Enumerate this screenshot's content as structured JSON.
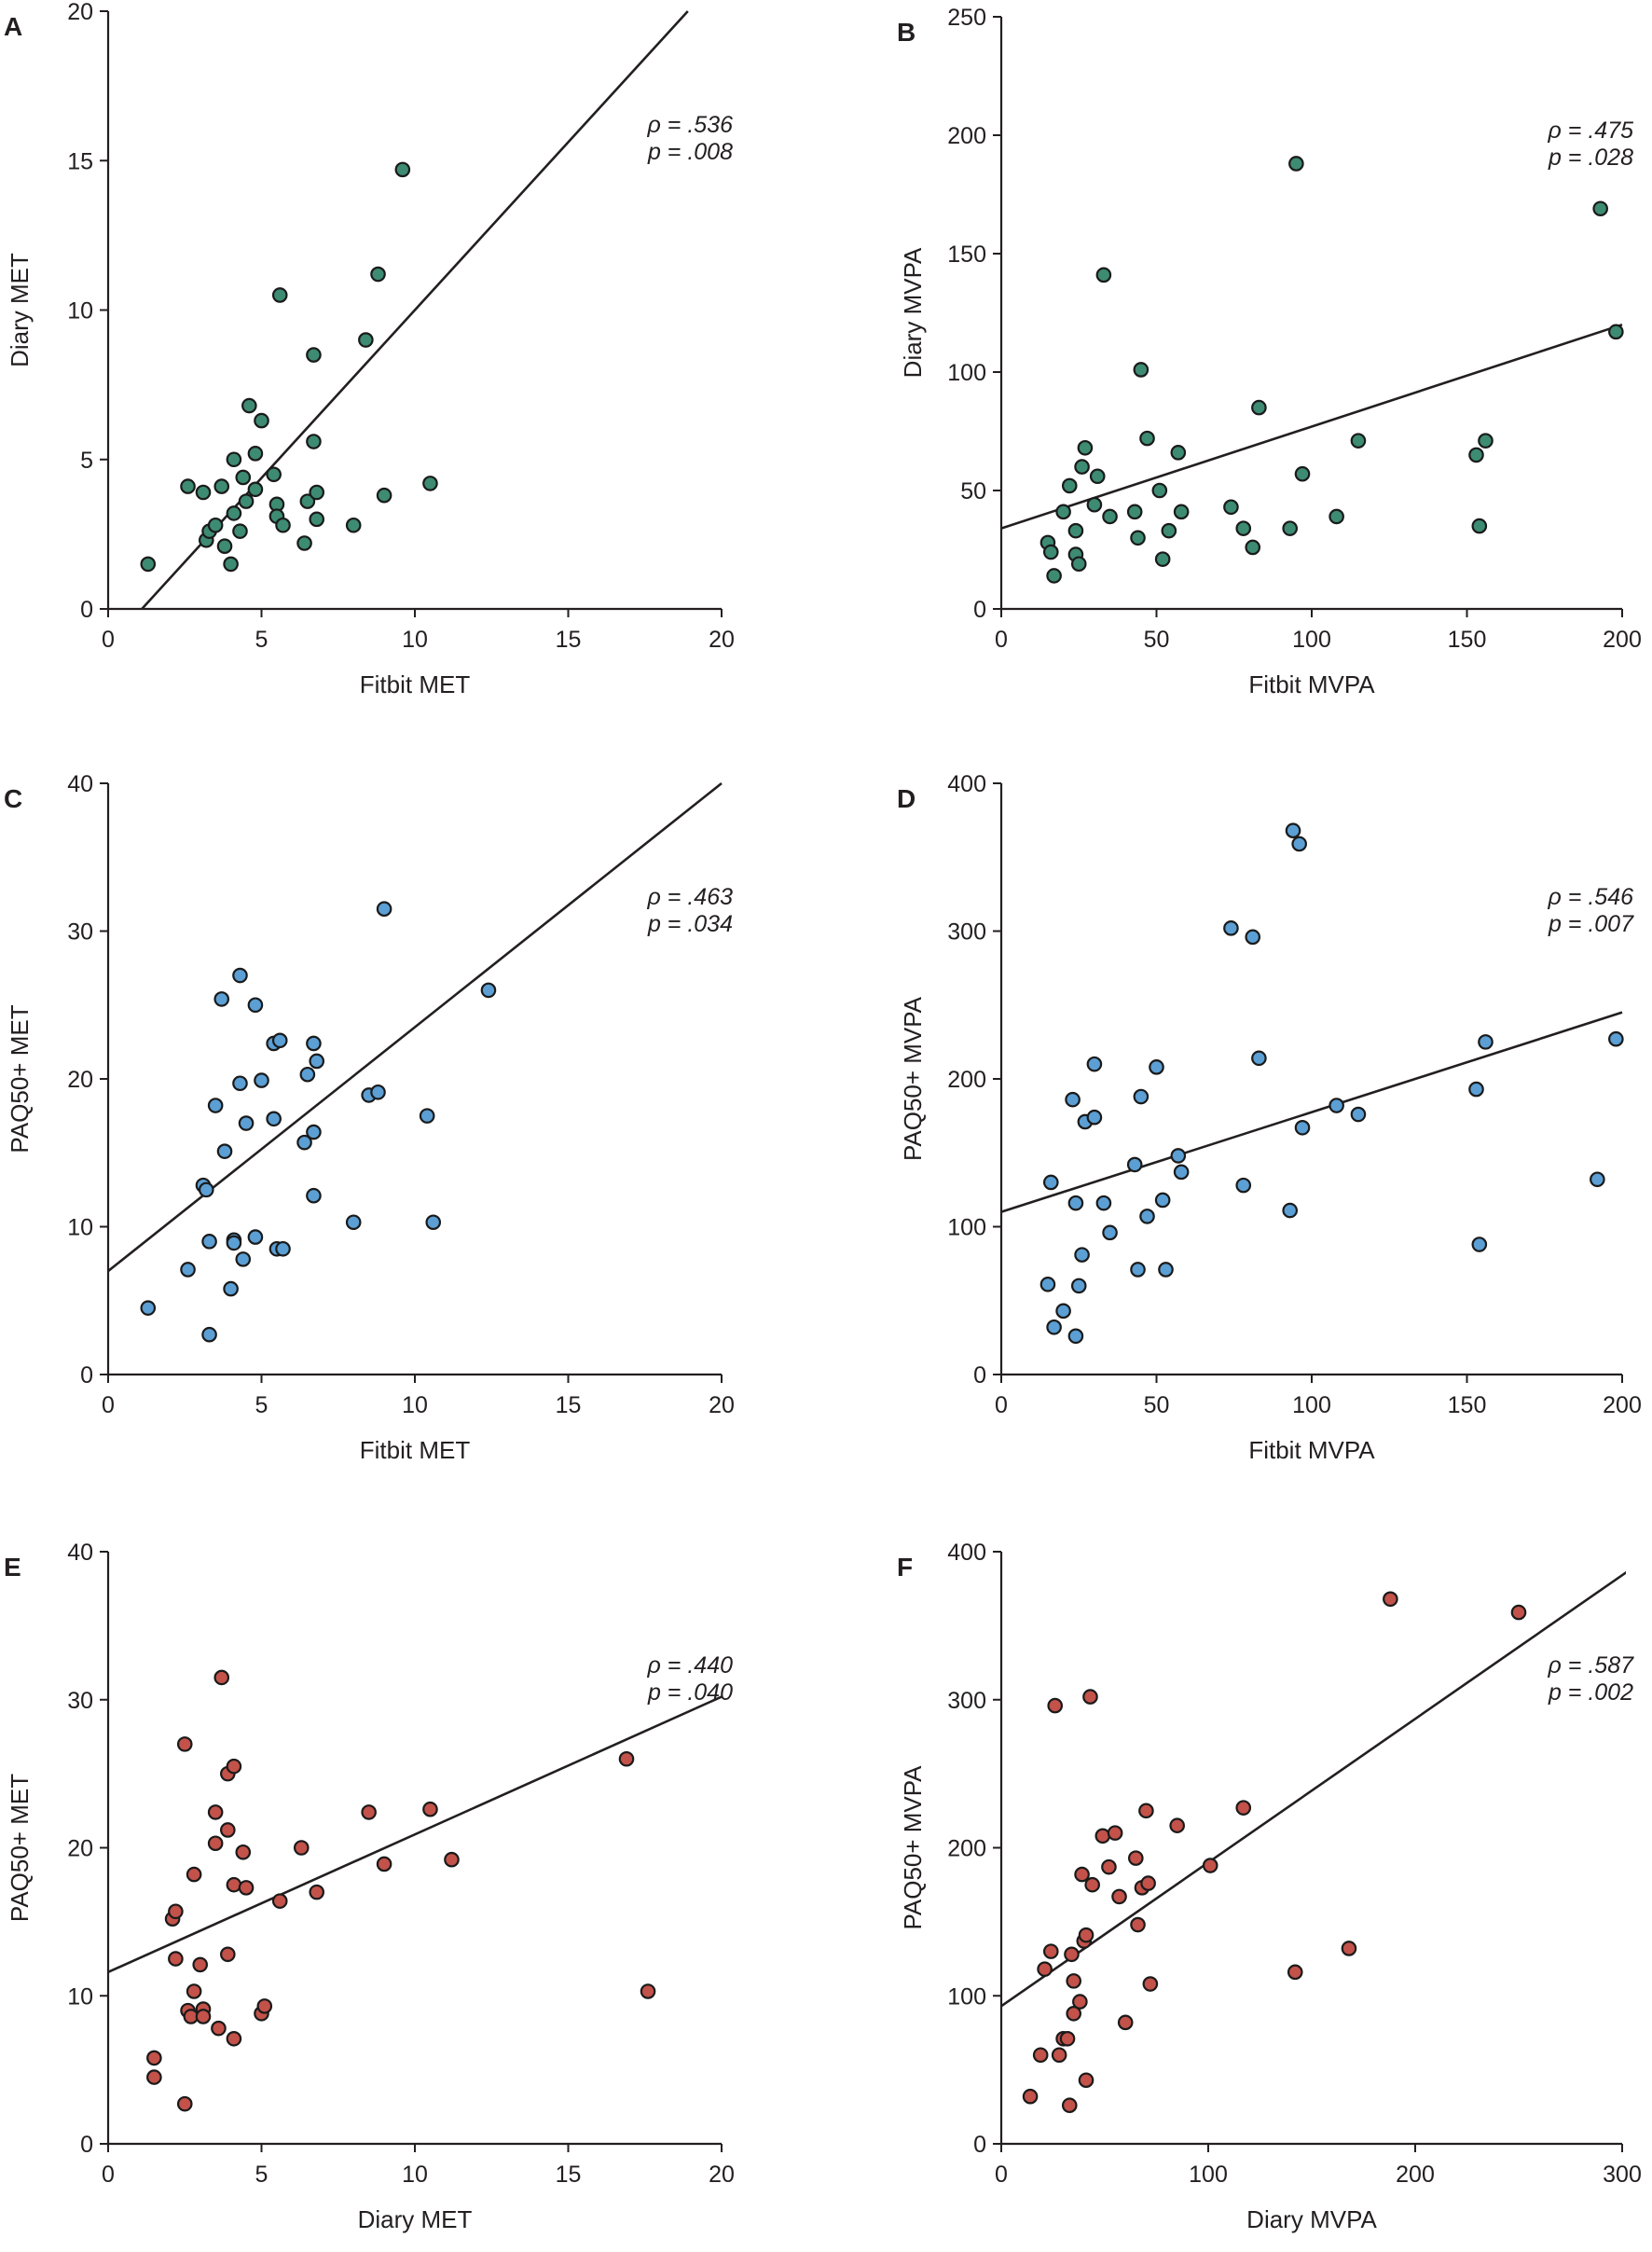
{
  "chart_data": [
    {
      "type": "scatter",
      "panel": "A",
      "xlabel": "Fitbit MET",
      "ylabel": "Diary MET",
      "xlim": [
        0,
        20
      ],
      "ylim": [
        0,
        20
      ],
      "xticks": [
        0,
        5,
        10,
        15,
        20
      ],
      "yticks": [
        0,
        5,
        10,
        15,
        20
      ],
      "stat_rho": "ρ = .536",
      "stat_p": "p = .008",
      "point_color": "#3d8b72",
      "regression": {
        "x": [
          1.1,
          18.9
        ],
        "y": [
          0,
          20
        ]
      },
      "points": [
        [
          1.3,
          1.5
        ],
        [
          2.6,
          4.1
        ],
        [
          3.1,
          3.9
        ],
        [
          3.2,
          2.3
        ],
        [
          3.3,
          2.6
        ],
        [
          3.5,
          2.8
        ],
        [
          3.7,
          4.1
        ],
        [
          3.8,
          2.1
        ],
        [
          4.0,
          1.5
        ],
        [
          4.1,
          3.2
        ],
        [
          4.1,
          5.0
        ],
        [
          4.3,
          2.6
        ],
        [
          4.4,
          4.4
        ],
        [
          4.5,
          3.6
        ],
        [
          4.6,
          6.8
        ],
        [
          4.8,
          5.2
        ],
        [
          4.8,
          4.0
        ],
        [
          5.0,
          6.3
        ],
        [
          5.4,
          4.5
        ],
        [
          5.5,
          3.5
        ],
        [
          5.5,
          3.1
        ],
        [
          5.6,
          10.5
        ],
        [
          5.7,
          2.8
        ],
        [
          6.4,
          2.2
        ],
        [
          6.5,
          3.6
        ],
        [
          6.7,
          8.5
        ],
        [
          6.7,
          5.6
        ],
        [
          6.8,
          3.0
        ],
        [
          6.8,
          3.9
        ],
        [
          8.0,
          2.8
        ],
        [
          8.4,
          9.0
        ],
        [
          8.8,
          11.2
        ],
        [
          9.0,
          3.8
        ],
        [
          9.6,
          14.7
        ],
        [
          10.5,
          4.2
        ]
      ]
    },
    {
      "type": "scatter",
      "panel": "B",
      "xlabel": "Fitbit MVPA",
      "ylabel": "Diary MVPA",
      "xlim": [
        0,
        200
      ],
      "ylim": [
        0,
        250
      ],
      "xticks": [
        0,
        50,
        100,
        150,
        200
      ],
      "yticks": [
        0,
        50,
        100,
        150,
        200,
        250
      ],
      "stat_rho": "ρ = .475",
      "stat_p": "p = .028",
      "point_color": "#3d8b72",
      "regression": {
        "x": [
          0,
          200
        ],
        "y": [
          34,
          120
        ]
      },
      "points": [
        [
          15,
          28
        ],
        [
          16,
          24
        ],
        [
          17,
          14
        ],
        [
          20,
          41
        ],
        [
          22,
          52
        ],
        [
          24,
          23
        ],
        [
          24,
          33
        ],
        [
          25,
          19
        ],
        [
          26,
          60
        ],
        [
          27,
          68
        ],
        [
          30,
          44
        ],
        [
          31,
          56
        ],
        [
          33,
          141
        ],
        [
          35,
          39
        ],
        [
          43,
          41
        ],
        [
          44,
          30
        ],
        [
          45,
          101
        ],
        [
          47,
          72
        ],
        [
          51,
          50
        ],
        [
          52,
          21
        ],
        [
          54,
          33
        ],
        [
          57,
          66
        ],
        [
          58,
          41
        ],
        [
          74,
          43
        ],
        [
          78,
          34
        ],
        [
          81,
          26
        ],
        [
          83,
          85
        ],
        [
          93,
          34
        ],
        [
          95,
          188
        ],
        [
          97,
          57
        ],
        [
          108,
          39
        ],
        [
          115,
          71
        ],
        [
          153,
          65
        ],
        [
          154,
          35
        ],
        [
          156,
          71
        ],
        [
          193,
          169
        ],
        [
          198,
          117
        ]
      ]
    },
    {
      "type": "scatter",
      "panel": "C",
      "xlabel": "Fitbit MET",
      "ylabel": "PAQ50+ MET",
      "xlim": [
        0,
        20
      ],
      "ylim": [
        0,
        40
      ],
      "xticks": [
        0,
        5,
        10,
        15,
        20
      ],
      "yticks": [
        0,
        10,
        20,
        30,
        40
      ],
      "stat_rho": "ρ = .463",
      "stat_p": "p = .034",
      "point_color": "#5b9fd4",
      "regression": {
        "x": [
          0,
          20
        ],
        "y": [
          7,
          40
        ]
      },
      "points": [
        [
          1.3,
          4.5
        ],
        [
          2.6,
          7.1
        ],
        [
          3.1,
          12.8
        ],
        [
          3.2,
          12.5
        ],
        [
          3.3,
          9.0
        ],
        [
          3.3,
          2.7
        ],
        [
          3.5,
          18.2
        ],
        [
          3.7,
          25.4
        ],
        [
          3.8,
          15.1
        ],
        [
          4.0,
          5.8
        ],
        [
          4.1,
          9.1
        ],
        [
          4.1,
          8.9
        ],
        [
          4.3,
          27.0
        ],
        [
          4.3,
          19.7
        ],
        [
          4.4,
          7.8
        ],
        [
          4.5,
          17.0
        ],
        [
          4.8,
          25.0
        ],
        [
          4.8,
          9.3
        ],
        [
          5.0,
          19.9
        ],
        [
          5.4,
          17.3
        ],
        [
          5.4,
          22.4
        ],
        [
          5.5,
          8.5
        ],
        [
          5.6,
          22.6
        ],
        [
          5.7,
          8.5
        ],
        [
          6.4,
          15.7
        ],
        [
          6.5,
          20.3
        ],
        [
          6.7,
          22.4
        ],
        [
          6.7,
          16.4
        ],
        [
          6.8,
          21.2
        ],
        [
          6.7,
          12.1
        ],
        [
          8.0,
          10.3
        ],
        [
          8.5,
          18.9
        ],
        [
          8.8,
          19.1
        ],
        [
          9.0,
          31.5
        ],
        [
          10.4,
          17.5
        ],
        [
          10.6,
          10.3
        ],
        [
          12.4,
          26.0
        ]
      ]
    },
    {
      "type": "scatter",
      "panel": "D",
      "xlabel": "Fitbit MVPA",
      "ylabel": "PAQ50+ MVPA",
      "xlim": [
        0,
        200
      ],
      "ylim": [
        0,
        400
      ],
      "xticks": [
        0,
        50,
        100,
        150,
        200
      ],
      "yticks": [
        0,
        100,
        200,
        300,
        400
      ],
      "stat_rho": "ρ = .546",
      "stat_p": "p = .007",
      "point_color": "#5b9fd4",
      "regression": {
        "x": [
          0,
          200
        ],
        "y": [
          110,
          245
        ]
      },
      "points": [
        [
          15,
          61
        ],
        [
          16,
          130
        ],
        [
          17,
          32
        ],
        [
          20,
          43
        ],
        [
          23,
          186
        ],
        [
          24,
          116
        ],
        [
          24,
          26
        ],
        [
          25,
          60
        ],
        [
          26,
          81
        ],
        [
          27,
          171
        ],
        [
          30,
          210
        ],
        [
          30,
          174
        ],
        [
          33,
          116
        ],
        [
          35,
          96
        ],
        [
          43,
          142
        ],
        [
          44,
          71
        ],
        [
          45,
          188
        ],
        [
          47,
          107
        ],
        [
          50,
          208
        ],
        [
          52,
          118
        ],
        [
          53,
          71
        ],
        [
          57,
          148
        ],
        [
          58,
          137
        ],
        [
          74,
          302
        ],
        [
          78,
          128
        ],
        [
          81,
          296
        ],
        [
          83,
          214
        ],
        [
          93,
          111
        ],
        [
          94,
          368
        ],
        [
          96,
          359
        ],
        [
          97,
          167
        ],
        [
          108,
          182
        ],
        [
          115,
          176
        ],
        [
          153,
          193
        ],
        [
          154,
          88
        ],
        [
          156,
          225
        ],
        [
          192,
          132
        ],
        [
          198,
          227
        ]
      ]
    },
    {
      "type": "scatter",
      "panel": "E",
      "xlabel": "Diary MET",
      "ylabel": "PAQ50+ MET",
      "xlim": [
        0,
        20
      ],
      "ylim": [
        0,
        40
      ],
      "xticks": [
        0,
        5,
        10,
        15,
        20
      ],
      "yticks": [
        0,
        10,
        20,
        30,
        40
      ],
      "stat_rho": "ρ = .440",
      "stat_p": "p = .040",
      "point_color": "#c2524a",
      "regression": {
        "x": [
          0,
          20
        ],
        "y": [
          11.6,
          30.2
        ]
      },
      "points": [
        [
          1.5,
          5.8
        ],
        [
          1.5,
          4.5
        ],
        [
          2.1,
          15.2
        ],
        [
          2.2,
          15.7
        ],
        [
          2.2,
          12.5
        ],
        [
          2.5,
          27.0
        ],
        [
          2.5,
          2.7
        ],
        [
          2.6,
          9.0
        ],
        [
          2.7,
          8.6
        ],
        [
          2.8,
          18.2
        ],
        [
          2.8,
          10.3
        ],
        [
          3.0,
          12.1
        ],
        [
          3.1,
          9.1
        ],
        [
          3.1,
          8.6
        ],
        [
          3.5,
          22.4
        ],
        [
          3.5,
          20.3
        ],
        [
          3.6,
          7.8
        ],
        [
          3.7,
          31.5
        ],
        [
          3.9,
          21.2
        ],
        [
          3.9,
          12.8
        ],
        [
          3.9,
          25.0
        ],
        [
          4.1,
          25.5
        ],
        [
          4.1,
          17.5
        ],
        [
          4.1,
          7.1
        ],
        [
          4.4,
          19.7
        ],
        [
          4.5,
          17.3
        ],
        [
          5.0,
          8.8
        ],
        [
          5.1,
          9.3
        ],
        [
          5.6,
          16.4
        ],
        [
          6.3,
          20.0
        ],
        [
          6.8,
          17.0
        ],
        [
          8.5,
          22.4
        ],
        [
          9.0,
          18.9
        ],
        [
          10.5,
          22.6
        ],
        [
          11.2,
          19.2
        ],
        [
          16.9,
          26.0
        ],
        [
          17.6,
          10.3
        ]
      ]
    },
    {
      "type": "scatter",
      "panel": "F",
      "xlabel": "Diary MVPA",
      "ylabel": "PAQ50+ MVPA",
      "xlim": [
        0,
        300
      ],
      "ylim": [
        0,
        400
      ],
      "xticks": [
        0,
        100,
        200,
        300
      ],
      "yticks": [
        0,
        100,
        200,
        300,
        400
      ],
      "stat_rho": "ρ = .587",
      "stat_p": "p = .002",
      "point_color": "#c2524a",
      "regression": {
        "x": [
          0,
          304
        ],
        "y": [
          93,
          388
        ]
      },
      "points": [
        [
          14,
          32
        ],
        [
          19,
          60
        ],
        [
          21,
          118
        ],
        [
          24,
          130
        ],
        [
          26,
          296
        ],
        [
          28,
          60
        ],
        [
          30,
          71
        ],
        [
          32,
          71
        ],
        [
          33,
          26
        ],
        [
          34,
          128
        ],
        [
          35,
          88
        ],
        [
          35,
          110
        ],
        [
          38,
          96
        ],
        [
          39,
          182
        ],
        [
          40,
          137
        ],
        [
          41,
          141
        ],
        [
          41,
          43
        ],
        [
          43,
          302
        ],
        [
          44,
          175
        ],
        [
          49,
          208
        ],
        [
          52,
          187
        ],
        [
          55,
          210
        ],
        [
          57,
          167
        ],
        [
          60,
          82
        ],
        [
          65,
          193
        ],
        [
          66,
          148
        ],
        [
          68,
          173
        ],
        [
          70,
          225
        ],
        [
          71,
          176
        ],
        [
          72,
          108
        ],
        [
          85,
          215
        ],
        [
          101,
          188
        ],
        [
          117,
          227
        ],
        [
          142,
          116
        ],
        [
          168,
          132
        ],
        [
          188,
          368
        ],
        [
          250,
          359
        ]
      ]
    }
  ]
}
